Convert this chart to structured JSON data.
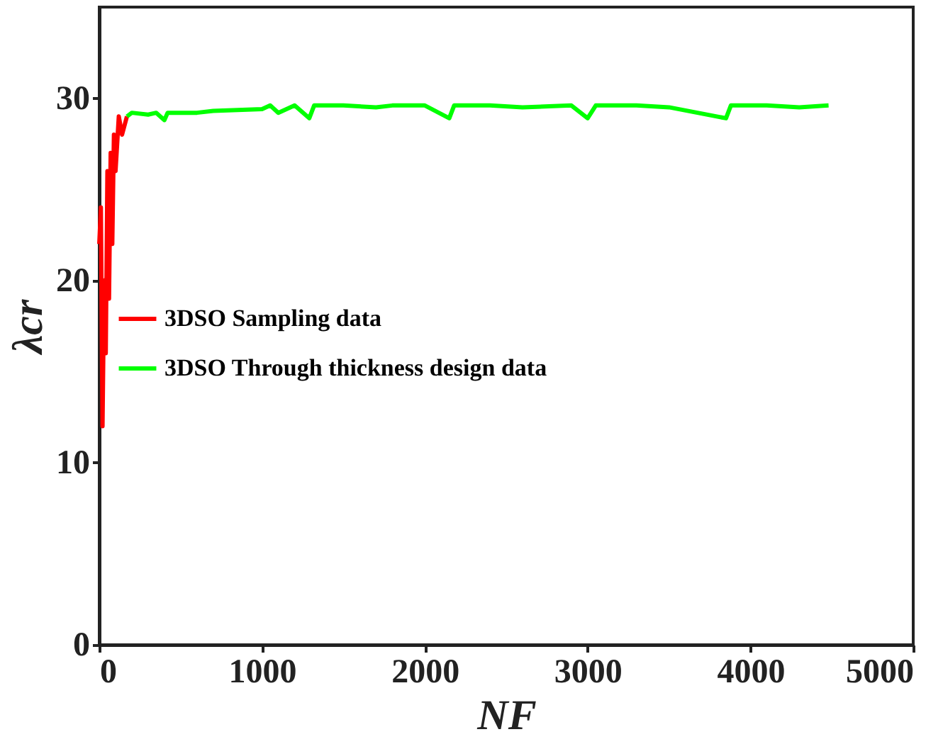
{
  "chart_data": {
    "type": "line",
    "xlabel": "NF",
    "ylabel": "λcr",
    "xlim": [
      0,
      5000
    ],
    "xticks": [
      0,
      1000,
      2000,
      3000,
      4000,
      5000
    ],
    "ylim": [
      0,
      35
    ],
    "yticks": [
      0,
      10,
      20,
      30
    ],
    "grid": false,
    "legend": "left",
    "marker": "none",
    "line_style": "solid",
    "series": [
      {
        "name": "3DSO Sampling data",
        "color": "#ff0000",
        "x": [
          0,
          10,
          20,
          30,
          40,
          50,
          60,
          70,
          80,
          90,
          100,
          120,
          140,
          170
        ],
        "values": [
          22,
          24,
          12,
          20,
          16,
          26,
          19,
          27,
          22,
          28,
          26,
          29,
          28,
          29
        ]
      },
      {
        "name": "3DSO Through thickness design data",
        "color": "#00ff00",
        "x": [
          170,
          200,
          300,
          350,
          400,
          420,
          600,
          700,
          1000,
          1050,
          1100,
          1200,
          1290,
          1320,
          1500,
          1700,
          1800,
          2000,
          2150,
          2180,
          2400,
          2600,
          2900,
          3000,
          3050,
          3300,
          3500,
          3850,
          3880,
          4100,
          4300,
          4480
        ],
        "values": [
          29.0,
          29.2,
          29.1,
          29.2,
          28.8,
          29.2,
          29.2,
          29.3,
          29.4,
          29.6,
          29.2,
          29.6,
          28.9,
          29.6,
          29.6,
          29.5,
          29.6,
          29.6,
          28.9,
          29.6,
          29.6,
          29.5,
          29.6,
          28.9,
          29.6,
          29.6,
          29.5,
          28.9,
          29.6,
          29.6,
          29.5,
          29.6
        ]
      }
    ]
  }
}
